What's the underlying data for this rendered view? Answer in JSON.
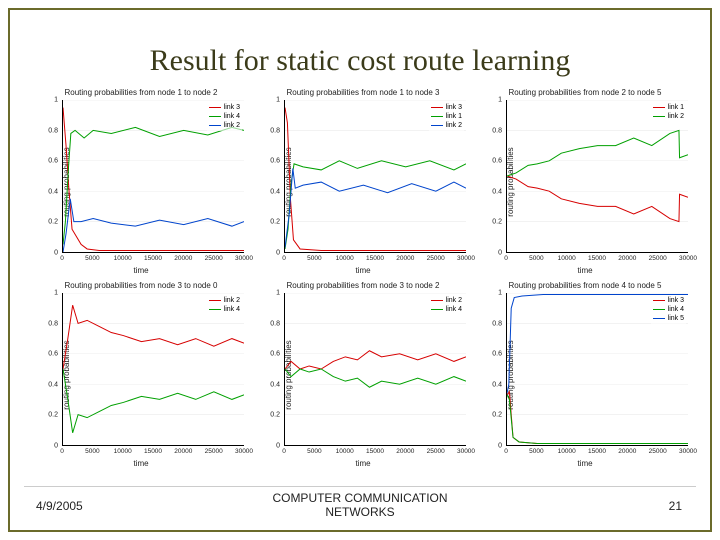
{
  "slide": {
    "title": "Result for static cost route learning",
    "footer": {
      "date": "4/9/2005",
      "center_line1": "COMPUTER COMMUNICATION",
      "center_line2": "NETWORKS",
      "page": "21"
    },
    "border_color": "#6b6b2b",
    "title_color": "#3b3b1a",
    "title_fontsize": 30
  },
  "common": {
    "ylabel": "routing probabilities",
    "xlabel": "time",
    "xlim": [
      0,
      30000
    ],
    "ylim": [
      0,
      1
    ],
    "yticks": [
      0,
      0.2,
      0.4,
      0.6,
      0.8,
      1
    ],
    "xticks": [
      0,
      5000,
      10000,
      15000,
      20000,
      25000,
      30000
    ],
    "grid_color": "#e6e6e6",
    "axis_color": "#000000",
    "background": "#ffffff",
    "tick_fontsize": 7,
    "label_fontsize": 8,
    "title_fontsize": 8,
    "colors": {
      "red": "#d60000",
      "green": "#00a000",
      "blue": "#0044cc"
    }
  },
  "charts": [
    {
      "title": "Routing probabilities from node 1 to node 2",
      "series": [
        {
          "label": "link 3",
          "color": "#d60000",
          "data": [
            [
              0,
              0.95
            ],
            [
              500,
              0.7
            ],
            [
              1000,
              0.4
            ],
            [
              1500,
              0.15
            ],
            [
              3000,
              0.05
            ],
            [
              4000,
              0.02
            ],
            [
              6000,
              0.01
            ],
            [
              10000,
              0.01
            ],
            [
              20000,
              0.01
            ],
            [
              30000,
              0.01
            ]
          ]
        },
        {
          "label": "link 4",
          "color": "#00a000",
          "data": [
            [
              0,
              0.05
            ],
            [
              400,
              0.2
            ],
            [
              900,
              0.55
            ],
            [
              1300,
              0.78
            ],
            [
              2000,
              0.8
            ],
            [
              3500,
              0.75
            ],
            [
              5000,
              0.8
            ],
            [
              8000,
              0.78
            ],
            [
              12000,
              0.82
            ],
            [
              16000,
              0.76
            ],
            [
              20000,
              0.8
            ],
            [
              24000,
              0.77
            ],
            [
              28000,
              0.82
            ],
            [
              30000,
              0.8
            ]
          ]
        },
        {
          "label": "link 2",
          "color": "#0044cc",
          "data": [
            [
              0,
              0.0
            ],
            [
              500,
              0.12
            ],
            [
              1200,
              0.35
            ],
            [
              1800,
              0.2
            ],
            [
              3000,
              0.2
            ],
            [
              5000,
              0.22
            ],
            [
              8000,
              0.19
            ],
            [
              12000,
              0.17
            ],
            [
              16000,
              0.21
            ],
            [
              20000,
              0.18
            ],
            [
              24000,
              0.22
            ],
            [
              28000,
              0.17
            ],
            [
              30000,
              0.2
            ]
          ]
        }
      ]
    },
    {
      "title": "Routing probabilities from node 1 to node 3",
      "series": [
        {
          "label": "link 3",
          "color": "#d60000",
          "data": [
            [
              0,
              0.95
            ],
            [
              400,
              0.85
            ],
            [
              900,
              0.35
            ],
            [
              1400,
              0.08
            ],
            [
              2500,
              0.02
            ],
            [
              6000,
              0.01
            ],
            [
              15000,
              0.01
            ],
            [
              30000,
              0.01
            ]
          ]
        },
        {
          "label": "link 1",
          "color": "#00a000",
          "data": [
            [
              0,
              0.02
            ],
            [
              500,
              0.15
            ],
            [
              1000,
              0.45
            ],
            [
              1500,
              0.58
            ],
            [
              3000,
              0.56
            ],
            [
              6000,
              0.54
            ],
            [
              9000,
              0.6
            ],
            [
              12000,
              0.55
            ],
            [
              16000,
              0.6
            ],
            [
              20000,
              0.56
            ],
            [
              24000,
              0.6
            ],
            [
              28000,
              0.54
            ],
            [
              30000,
              0.58
            ]
          ]
        },
        {
          "label": "link 2",
          "color": "#0044cc",
          "data": [
            [
              0,
              0.03
            ],
            [
              700,
              0.25
            ],
            [
              1300,
              0.55
            ],
            [
              1700,
              0.42
            ],
            [
              3000,
              0.44
            ],
            [
              6000,
              0.46
            ],
            [
              9000,
              0.4
            ],
            [
              13000,
              0.44
            ],
            [
              17000,
              0.39
            ],
            [
              21000,
              0.45
            ],
            [
              25000,
              0.4
            ],
            [
              28000,
              0.46
            ],
            [
              30000,
              0.42
            ]
          ]
        }
      ]
    },
    {
      "title": "Routing probabilities from node 2 to node 5",
      "series": [
        {
          "label": "link 1",
          "color": "#d60000",
          "data": [
            [
              0,
              0.5
            ],
            [
              1500,
              0.48
            ],
            [
              3500,
              0.43
            ],
            [
              5000,
              0.42
            ],
            [
              7000,
              0.4
            ],
            [
              9000,
              0.35
            ],
            [
              12000,
              0.32
            ],
            [
              15000,
              0.3
            ],
            [
              18000,
              0.3
            ],
            [
              21000,
              0.25
            ],
            [
              24000,
              0.3
            ],
            [
              27000,
              0.22
            ],
            [
              28500,
              0.2
            ],
            [
              28600,
              0.38
            ],
            [
              30000,
              0.36
            ]
          ]
        },
        {
          "label": "link 2",
          "color": "#00a000",
          "data": [
            [
              0,
              0.5
            ],
            [
              1500,
              0.52
            ],
            [
              3500,
              0.57
            ],
            [
              5000,
              0.58
            ],
            [
              7000,
              0.6
            ],
            [
              9000,
              0.65
            ],
            [
              12000,
              0.68
            ],
            [
              15000,
              0.7
            ],
            [
              18000,
              0.7
            ],
            [
              21000,
              0.75
            ],
            [
              24000,
              0.7
            ],
            [
              27000,
              0.78
            ],
            [
              28500,
              0.8
            ],
            [
              28600,
              0.62
            ],
            [
              30000,
              0.64
            ]
          ]
        }
      ]
    },
    {
      "title": "Routing probabilities from node 3 to node 0",
      "series": [
        {
          "label": "link 2",
          "color": "#d60000",
          "data": [
            [
              0,
              0.5
            ],
            [
              800,
              0.7
            ],
            [
              1600,
              0.92
            ],
            [
              2500,
              0.8
            ],
            [
              4000,
              0.82
            ],
            [
              6000,
              0.78
            ],
            [
              8000,
              0.74
            ],
            [
              10000,
              0.72
            ],
            [
              13000,
              0.68
            ],
            [
              16000,
              0.7
            ],
            [
              19000,
              0.66
            ],
            [
              22000,
              0.7
            ],
            [
              25000,
              0.65
            ],
            [
              28000,
              0.7
            ],
            [
              30000,
              0.67
            ]
          ]
        },
        {
          "label": "link 4",
          "color": "#00a000",
          "data": [
            [
              0,
              0.5
            ],
            [
              800,
              0.3
            ],
            [
              1600,
              0.08
            ],
            [
              2500,
              0.2
            ],
            [
              4000,
              0.18
            ],
            [
              6000,
              0.22
            ],
            [
              8000,
              0.26
            ],
            [
              10000,
              0.28
            ],
            [
              13000,
              0.32
            ],
            [
              16000,
              0.3
            ],
            [
              19000,
              0.34
            ],
            [
              22000,
              0.3
            ],
            [
              25000,
              0.35
            ],
            [
              28000,
              0.3
            ],
            [
              30000,
              0.33
            ]
          ]
        }
      ]
    },
    {
      "title": "Routing probabilities from node 3 to node 2",
      "series": [
        {
          "label": "link 2",
          "color": "#d60000",
          "data": [
            [
              0,
              0.5
            ],
            [
              1000,
              0.55
            ],
            [
              2500,
              0.5
            ],
            [
              4000,
              0.52
            ],
            [
              6000,
              0.5
            ],
            [
              8000,
              0.55
            ],
            [
              10000,
              0.58
            ],
            [
              12000,
              0.56
            ],
            [
              14000,
              0.62
            ],
            [
              16000,
              0.58
            ],
            [
              19000,
              0.6
            ],
            [
              22000,
              0.56
            ],
            [
              25000,
              0.6
            ],
            [
              28000,
              0.55
            ],
            [
              30000,
              0.58
            ]
          ]
        },
        {
          "label": "link 4",
          "color": "#00a000",
          "data": [
            [
              0,
              0.5
            ],
            [
              1000,
              0.45
            ],
            [
              2500,
              0.5
            ],
            [
              4000,
              0.48
            ],
            [
              6000,
              0.5
            ],
            [
              8000,
              0.45
            ],
            [
              10000,
              0.42
            ],
            [
              12000,
              0.44
            ],
            [
              14000,
              0.38
            ],
            [
              16000,
              0.42
            ],
            [
              19000,
              0.4
            ],
            [
              22000,
              0.44
            ],
            [
              25000,
              0.4
            ],
            [
              28000,
              0.45
            ],
            [
              30000,
              0.42
            ]
          ]
        }
      ]
    },
    {
      "title": "Routing probabilities from node 4 to node 5",
      "series": [
        {
          "label": "link 3",
          "color": "#d60000",
          "data": [
            [
              0,
              0.33
            ],
            [
              400,
              0.35
            ],
            [
              1000,
              0.05
            ],
            [
              2000,
              0.02
            ],
            [
              5000,
              0.01
            ],
            [
              10000,
              0.01
            ],
            [
              20000,
              0.01
            ],
            [
              30000,
              0.01
            ]
          ]
        },
        {
          "label": "link 4",
          "color": "#00a000",
          "data": [
            [
              0,
              0.33
            ],
            [
              400,
              0.3
            ],
            [
              1000,
              0.05
            ],
            [
              2000,
              0.02
            ],
            [
              5000,
              0.01
            ],
            [
              10000,
              0.01
            ],
            [
              20000,
              0.01
            ],
            [
              30000,
              0.01
            ]
          ]
        },
        {
          "label": "link 5",
          "color": "#0044cc",
          "data": [
            [
              0,
              0.34
            ],
            [
              300,
              0.4
            ],
            [
              700,
              0.9
            ],
            [
              1200,
              0.97
            ],
            [
              2500,
              0.98
            ],
            [
              6000,
              0.99
            ],
            [
              12000,
              0.99
            ],
            [
              20000,
              0.99
            ],
            [
              30000,
              0.99
            ]
          ]
        }
      ]
    }
  ]
}
